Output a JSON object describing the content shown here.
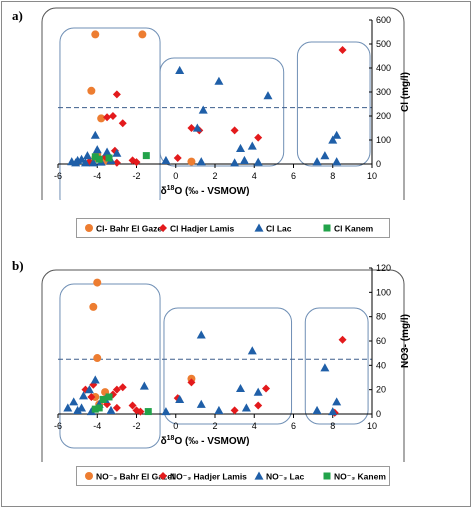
{
  "panels": [
    {
      "label": "a)",
      "y_axis_label": "Cl (mg/l)",
      "x_axis_label_prefix": "δ",
      "x_axis_label_sup": "18",
      "x_axis_label_rest": "O (‰ - VSMOW)",
      "legend": [
        "Cl- Bahr El Gazel",
        "Cl  Hadjer Lamis",
        "Cl Lac",
        "Cl Kanem"
      ]
    },
    {
      "label": "b)",
      "y_axis_label": "NO3- (mg/l)",
      "x_axis_label_prefix": "δ",
      "x_axis_label_sup": "18",
      "x_axis_label_rest": "O (‰ - VSMOW)",
      "legend": [
        "NO⁻₃ Bahr El Gazel",
        "NO⁻₃  Hadjer Lamis",
        "NO⁻₃ Lac",
        "NO⁻₃ Kanem"
      ]
    }
  ],
  "colors": {
    "bahr_el_gazel": "#ED7D31",
    "hadjer_lamis": "#E31A1C",
    "lac": "#1F5FA8",
    "kanem": "#22A34A",
    "group_box": "#6F8FB5",
    "threshold_line": "#3D5E8C"
  },
  "chart_data": [
    {
      "type": "scatter",
      "xlabel": "δ18O (‰ - VSMOW)",
      "ylabel": "Cl (mg/l)",
      "xlim": [
        -6,
        10
      ],
      "ylim": [
        0,
        600
      ],
      "x_ticks": [
        -6,
        -4,
        -2,
        0,
        2,
        4,
        6,
        8,
        10
      ],
      "y_ticks": [
        0,
        100,
        200,
        300,
        400,
        500,
        600
      ],
      "threshold_line": 235,
      "legend_position": "bottom",
      "series": [
        {
          "name": "Cl- Bahr El Gazel",
          "marker": "circle",
          "color_key": "bahr_el_gazel",
          "x": [
            -4.1,
            -1.7,
            -4.3,
            -3.8,
            -4.0,
            -3.6,
            0.8,
            -4.1
          ],
          "y": [
            540,
            540,
            305,
            190,
            40,
            15,
            10,
            25
          ]
        },
        {
          "name": "Cl  Hadjer Lamis",
          "marker": "diamond",
          "color_key": "hadjer_lamis",
          "x": [
            -3.5,
            -3.2,
            -3.0,
            -2.7,
            -3.1,
            -3.6,
            -3.9,
            -2.2,
            -2.0,
            0.1,
            0.8,
            1.2,
            3.0,
            4.2,
            8.5,
            -4.4,
            -3.0
          ],
          "y": [
            195,
            200,
            290,
            170,
            55,
            30,
            20,
            15,
            8,
            25,
            150,
            140,
            140,
            110,
            475,
            10,
            5
          ]
        },
        {
          "name": "Cl Lac",
          "marker": "triangle",
          "color_key": "lac",
          "x": [
            0.2,
            2.2,
            1.4,
            1.1,
            4.7,
            3.3,
            3.9,
            -4.1,
            -3.5,
            -4.5,
            -5.0,
            -5.3,
            -4.8,
            -3.0,
            -3.3,
            -3.8,
            -4.2,
            -0.5,
            1.3,
            3.0,
            3.5,
            4.2,
            7.2,
            7.6,
            8.0,
            8.2,
            8.2,
            -4.0,
            -4.6,
            -5.1
          ],
          "y": [
            390,
            345,
            225,
            150,
            285,
            65,
            75,
            120,
            50,
            35,
            15,
            10,
            20,
            45,
            15,
            8,
            5,
            15,
            10,
            5,
            15,
            8,
            10,
            35,
            100,
            120,
            10,
            60,
            5,
            5
          ]
        },
        {
          "name": "Cl Kanem",
          "marker": "square",
          "color_key": "kanem",
          "x": [
            -1.5,
            -3.9,
            -3.4,
            -4.1
          ],
          "y": [
            35,
            20,
            25,
            30
          ]
        }
      ]
    },
    {
      "type": "scatter",
      "xlabel": "δ18O (‰ - VSMOW)",
      "ylabel": "NO3- (mg/l)",
      "xlim": [
        -6,
        10
      ],
      "ylim": [
        0,
        120
      ],
      "x_ticks": [
        -6,
        -4,
        -2,
        0,
        2,
        4,
        6,
        8,
        10
      ],
      "y_ticks": [
        0,
        20,
        40,
        60,
        80,
        100,
        120
      ],
      "threshold_line": 45,
      "legend_position": "bottom",
      "series": [
        {
          "name": "NO⁻₃ Bahr El Gazel",
          "marker": "circle",
          "color_key": "bahr_el_gazel",
          "x": [
            -4.0,
            -4.2,
            -4.0,
            -3.6,
            -4.1,
            -3.9,
            0.8
          ],
          "y": [
            108,
            88,
            46,
            18,
            14,
            8,
            29
          ]
        },
        {
          "name": "NO⁻₃  Hadjer Lamis",
          "marker": "diamond",
          "color_key": "hadjer_lamis",
          "x": [
            -4.2,
            -4.6,
            -3.2,
            -3.0,
            -2.7,
            -3.6,
            -3.5,
            -3.0,
            -2.2,
            -2.0,
            -1.8,
            0.1,
            0.8,
            3.0,
            4.2,
            4.6,
            8.5,
            8.1,
            -4.3
          ],
          "y": [
            24,
            20,
            16,
            20,
            22,
            12,
            8,
            5,
            7,
            3,
            2,
            13,
            26,
            3,
            7,
            21,
            61,
            1,
            14
          ]
        },
        {
          "name": "NO⁻₃ Lac",
          "marker": "triangle",
          "color_key": "lac",
          "x": [
            -4.1,
            -4.4,
            -4.7,
            -5.2,
            -5.5,
            -3.9,
            -3.6,
            -3.3,
            -1.6,
            -0.5,
            0.2,
            1.3,
            1.3,
            2.2,
            3.3,
            3.9,
            4.2,
            3.6,
            7.2,
            7.6,
            8.2,
            8.0,
            -4.8,
            -5.0,
            -4.3
          ],
          "y": [
            28,
            20,
            15,
            10,
            5,
            8,
            12,
            3,
            23,
            2,
            12,
            65,
            8,
            3,
            21,
            52,
            18,
            5,
            3,
            38,
            10,
            2,
            5,
            3,
            2
          ]
        },
        {
          "name": "NO⁻₃ Kanem",
          "marker": "square",
          "color_key": "kanem",
          "x": [
            -1.4,
            -3.9,
            -3.4,
            -4.1,
            -3.7
          ],
          "y": [
            2,
            5,
            14,
            4,
            12
          ]
        }
      ]
    }
  ]
}
